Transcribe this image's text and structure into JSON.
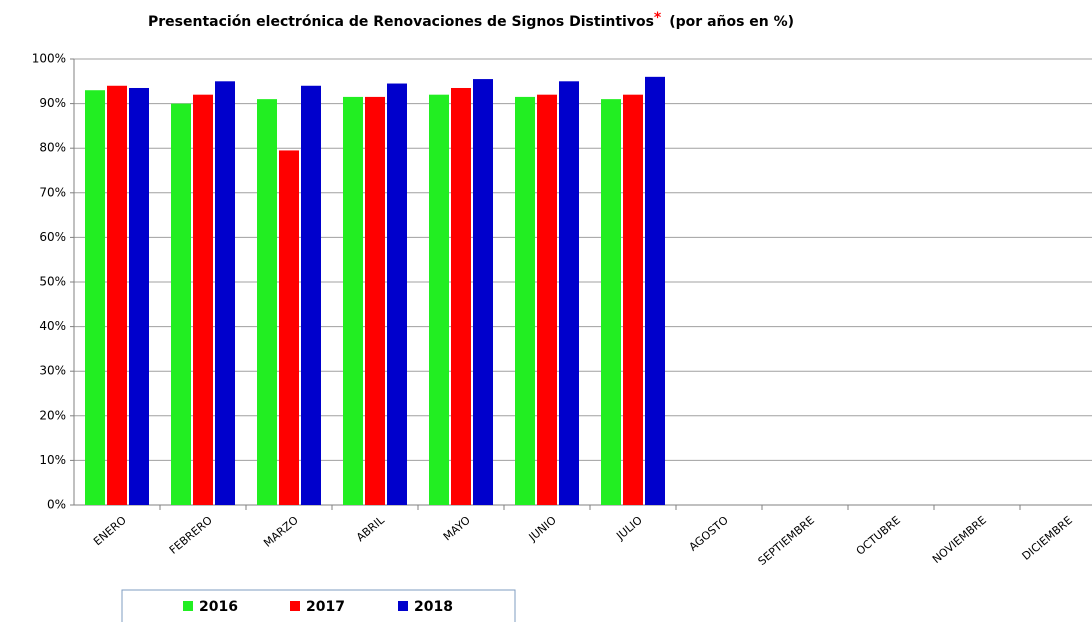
{
  "chart_data": {
    "type": "bar",
    "title": "Presentación electrónica de Renovaciones de Signos Distintivos",
    "title_mark": "*",
    "subtitle": "(por años en %)",
    "categories": [
      "ENERO",
      "FEBRERO",
      "MARZO",
      "ABRIL",
      "MAYO",
      "JUNIO",
      "JULIO",
      "AGOSTO",
      "SEPTIEMBRE",
      "OCTUBRE",
      "NOVIEMBRE",
      "DICIEMBRE"
    ],
    "series": [
      {
        "name": "2016",
        "color": "#22ee22",
        "values": [
          93,
          90,
          91,
          91.5,
          92,
          91.5,
          91,
          null,
          null,
          null,
          null,
          null
        ]
      },
      {
        "name": "2017",
        "color": "#ff0000",
        "values": [
          94,
          92,
          79.5,
          91.5,
          93.5,
          92,
          92,
          null,
          null,
          null,
          null,
          null
        ]
      },
      {
        "name": "2018",
        "color": "#0000cc",
        "values": [
          93.5,
          95,
          94,
          94.5,
          95.5,
          95,
          96,
          null,
          null,
          null,
          null,
          null
        ]
      }
    ],
    "ylim": [
      0,
      100
    ],
    "yticks": [
      {
        "value": 0,
        "label": "0%"
      },
      {
        "value": 10,
        "label": "10%"
      },
      {
        "value": 20,
        "label": "20%"
      },
      {
        "value": 30,
        "label": "30%"
      },
      {
        "value": 40,
        "label": "40%"
      },
      {
        "value": 50,
        "label": "50%"
      },
      {
        "value": 60,
        "label": "60%"
      },
      {
        "value": 70,
        "label": "70%"
      },
      {
        "value": 80,
        "label": "80%"
      },
      {
        "value": 90,
        "label": "90%"
      },
      {
        "value": 100,
        "label": "100%"
      }
    ],
    "grid": true
  }
}
